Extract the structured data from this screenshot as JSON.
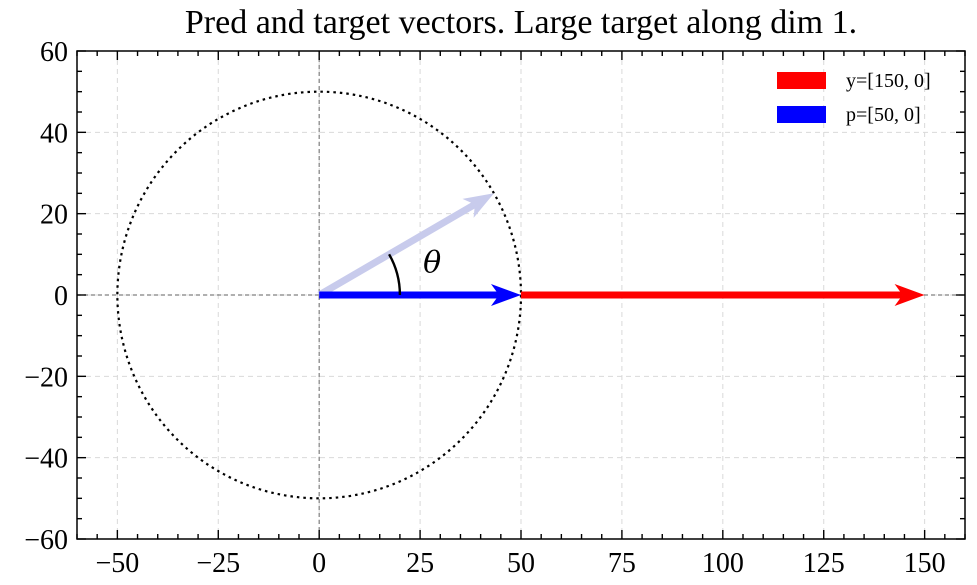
{
  "chart_data": {
    "type": "vector-plot",
    "title": "Pred and target vectors. Large target along dim 1.",
    "xlim": [
      -60,
      160
    ],
    "ylim": [
      -60,
      60
    ],
    "x_ticks": [
      -50,
      -25,
      0,
      25,
      50,
      75,
      100,
      125,
      150
    ],
    "y_ticks": [
      -60,
      -40,
      -20,
      0,
      20,
      40,
      60
    ],
    "x_tick_labels": [
      "−50",
      "−25",
      "0",
      "25",
      "50",
      "75",
      "100",
      "125",
      "150"
    ],
    "y_tick_labels": [
      "−60",
      "−40",
      "−20",
      "0",
      "20",
      "40",
      "60"
    ],
    "grid": true,
    "legend_position": "top-right",
    "series": [
      {
        "name": "y=[150, 0]",
        "color": "#ff0000",
        "from": [
          0,
          0
        ],
        "to": [
          150,
          0
        ]
      },
      {
        "name": "p=[50, 0]",
        "color": "#0000ff",
        "from": [
          0,
          0
        ],
        "to": [
          50,
          0
        ]
      }
    ],
    "faded_vector": {
      "from": [
        0,
        0
      ],
      "to": [
        43.3,
        25
      ],
      "color": "#c8cbec"
    },
    "circle": {
      "center": [
        0,
        0
      ],
      "radius": 50
    },
    "angle_annotation": {
      "label": "θ",
      "radius": 20,
      "start_deg": 0,
      "end_deg": 30
    }
  }
}
